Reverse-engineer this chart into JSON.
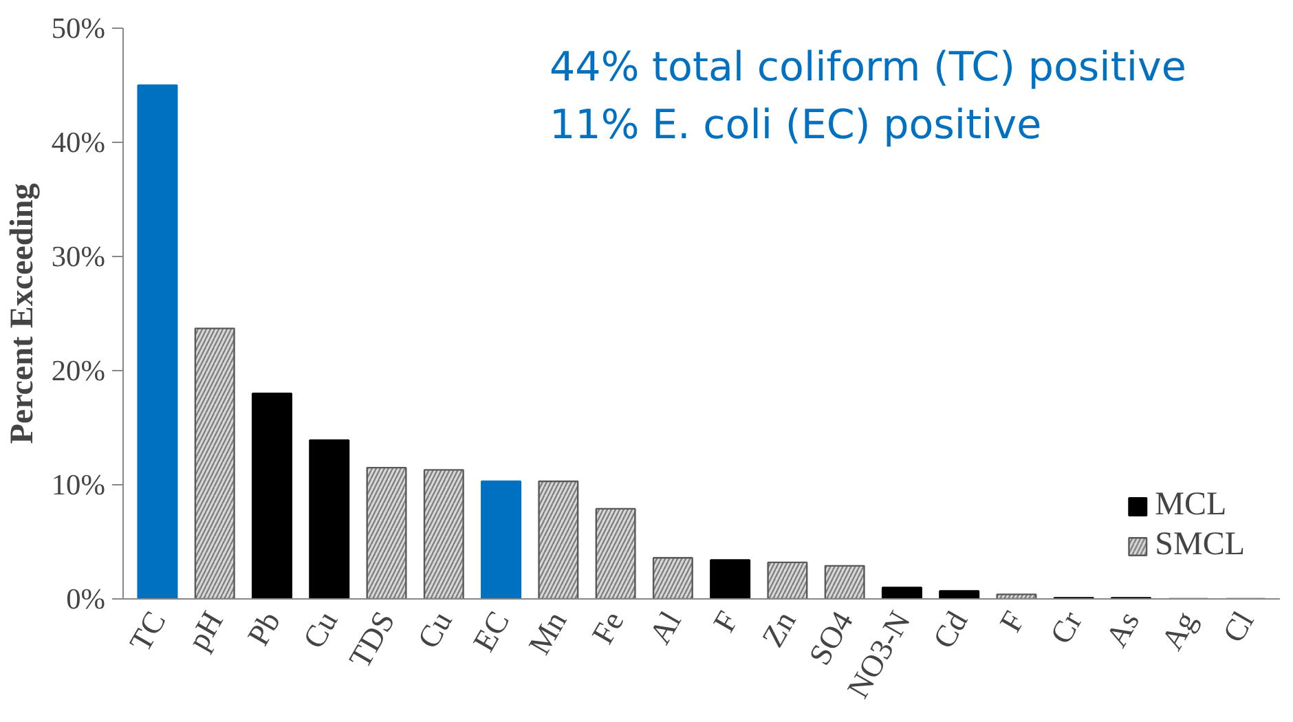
{
  "chart_data": {
    "type": "bar",
    "ylabel": "Percent Exceeding",
    "categories": [
      "TC",
      "pH",
      "Pb",
      "Cu",
      "TDS",
      "Cu",
      "EC",
      "Mn",
      "Fe",
      "Al",
      "F",
      "Zn",
      "SO4",
      "NO3-N",
      "Cd",
      "F",
      "Cr",
      "As",
      "Ag",
      "Cl"
    ],
    "series": [
      {
        "color": "#0070c0",
        "values": [
          45,
          null,
          null,
          null,
          null,
          null,
          10.3,
          null,
          null,
          null,
          null,
          null,
          null,
          null,
          null,
          null,
          null,
          null,
          null,
          null
        ]
      },
      {
        "name": "MCL",
        "color": "#000000",
        "values": [
          null,
          null,
          18.0,
          13.9,
          null,
          null,
          null,
          null,
          null,
          null,
          3.4,
          null,
          null,
          1.0,
          0.7,
          null,
          0.1,
          0.1,
          0,
          0
        ]
      },
      {
        "name": "SMCL",
        "color": "#d9d9d9",
        "values": [
          null,
          23.7,
          null,
          null,
          11.5,
          11.3,
          null,
          10.3,
          7.9,
          3.6,
          null,
          3.2,
          2.9,
          null,
          null,
          0.4,
          null,
          null,
          null,
          null
        ]
      }
    ],
    "ylim": [
      0,
      50
    ],
    "yticks": [
      {
        "value": 0,
        "label": "0%"
      },
      {
        "value": 10,
        "label": "10%"
      },
      {
        "value": 20,
        "label": "20%"
      },
      {
        "value": 30,
        "label": "30%"
      },
      {
        "value": 40,
        "label": "40%"
      },
      {
        "value": 50,
        "label": "50%"
      }
    ],
    "grid": false,
    "legend": "bottom right",
    "annotations": [
      "44% total coliform (TC) positive",
      "11% E. coli (EC) positive"
    ]
  }
}
